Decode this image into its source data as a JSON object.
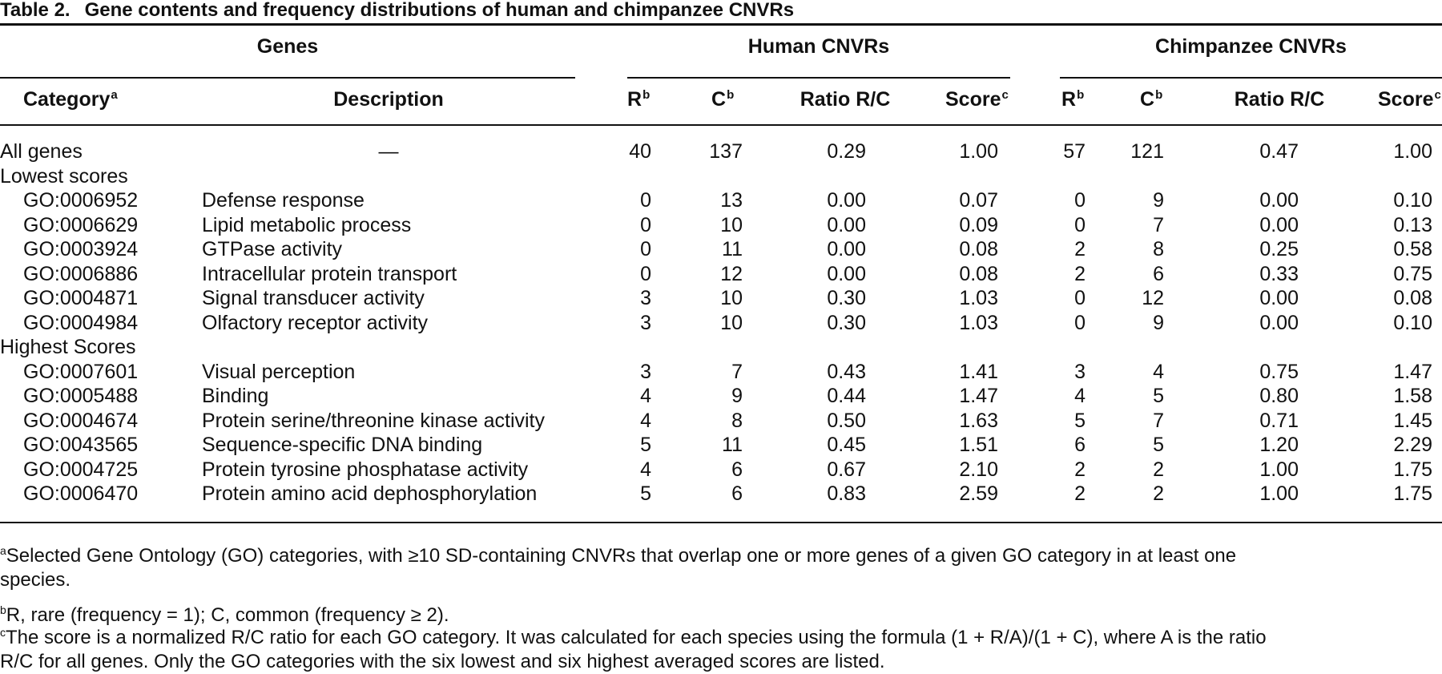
{
  "table": {
    "label": "Table 2.",
    "title": "Gene contents and frequency distributions of human and chimpanzee CNVRs",
    "group_headers": {
      "genes": "Genes",
      "human": "Human CNVRs",
      "chimp": "Chimpanzee CNVRs"
    },
    "column_headers": {
      "category": "Category",
      "category_sup": "a",
      "description": "Description",
      "r": "R",
      "r_sup": "b",
      "c": "C",
      "c_sup": "b",
      "ratio": "Ratio R/C",
      "score": "Score",
      "score_sup": "c"
    },
    "rows": [
      {
        "type": "data",
        "category": "All genes",
        "description": "—",
        "h_r": "40",
        "h_c": "137",
        "h_ratio": "0.29",
        "h_score": "1.00",
        "c_r": "57",
        "c_c": "121",
        "c_ratio": "0.47",
        "c_score": "1.00"
      },
      {
        "type": "section",
        "category": "Lowest scores"
      },
      {
        "type": "data",
        "category": "GO:0006952",
        "description": "Defense response",
        "h_r": "0",
        "h_c": "13",
        "h_ratio": "0.00",
        "h_score": "0.07",
        "c_r": "0",
        "c_c": "9",
        "c_ratio": "0.00",
        "c_score": "0.10"
      },
      {
        "type": "data",
        "category": "GO:0006629",
        "description": "Lipid metabolic process",
        "h_r": "0",
        "h_c": "10",
        "h_ratio": "0.00",
        "h_score": "0.09",
        "c_r": "0",
        "c_c": "7",
        "c_ratio": "0.00",
        "c_score": "0.13"
      },
      {
        "type": "data",
        "category": "GO:0003924",
        "description": "GTPase activity",
        "h_r": "0",
        "h_c": "11",
        "h_ratio": "0.00",
        "h_score": "0.08",
        "c_r": "2",
        "c_c": "8",
        "c_ratio": "0.25",
        "c_score": "0.58"
      },
      {
        "type": "data",
        "category": "GO:0006886",
        "description": "Intracellular protein transport",
        "h_r": "0",
        "h_c": "12",
        "h_ratio": "0.00",
        "h_score": "0.08",
        "c_r": "2",
        "c_c": "6",
        "c_ratio": "0.33",
        "c_score": "0.75"
      },
      {
        "type": "data",
        "category": "GO:0004871",
        "description": "Signal transducer activity",
        "h_r": "3",
        "h_c": "10",
        "h_ratio": "0.30",
        "h_score": "1.03",
        "c_r": "0",
        "c_c": "12",
        "c_ratio": "0.00",
        "c_score": "0.08"
      },
      {
        "type": "data",
        "category": "GO:0004984",
        "description": "Olfactory receptor activity",
        "h_r": "3",
        "h_c": "10",
        "h_ratio": "0.30",
        "h_score": "1.03",
        "c_r": "0",
        "c_c": "9",
        "c_ratio": "0.00",
        "c_score": "0.10"
      },
      {
        "type": "section",
        "category": "Highest Scores"
      },
      {
        "type": "data",
        "category": "GO:0007601",
        "description": "Visual perception",
        "h_r": "3",
        "h_c": "7",
        "h_ratio": "0.43",
        "h_score": "1.41",
        "c_r": "3",
        "c_c": "4",
        "c_ratio": "0.75",
        "c_score": "1.47"
      },
      {
        "type": "data",
        "category": "GO:0005488",
        "description": "Binding",
        "h_r": "4",
        "h_c": "9",
        "h_ratio": "0.44",
        "h_score": "1.47",
        "c_r": "4",
        "c_c": "5",
        "c_ratio": "0.80",
        "c_score": "1.58"
      },
      {
        "type": "data",
        "category": "GO:0004674",
        "description": "Protein serine/threonine kinase activity",
        "h_r": "4",
        "h_c": "8",
        "h_ratio": "0.50",
        "h_score": "1.63",
        "c_r": "5",
        "c_c": "7",
        "c_ratio": "0.71",
        "c_score": "1.45"
      },
      {
        "type": "data",
        "category": "GO:0043565",
        "description": "Sequence-specific DNA binding",
        "h_r": "5",
        "h_c": "11",
        "h_ratio": "0.45",
        "h_score": "1.51",
        "c_r": "6",
        "c_c": "5",
        "c_ratio": "1.20",
        "c_score": "2.29"
      },
      {
        "type": "data",
        "category": "GO:0004725",
        "description": "Protein tyrosine phosphatase activity",
        "h_r": "4",
        "h_c": "6",
        "h_ratio": "0.67",
        "h_score": "2.10",
        "c_r": "2",
        "c_c": "2",
        "c_ratio": "1.00",
        "c_score": "1.75"
      },
      {
        "type": "data",
        "category": "GO:0006470",
        "description": "Protein amino acid dephosphorylation",
        "h_r": "5",
        "h_c": "6",
        "h_ratio": "0.83",
        "h_score": "2.59",
        "c_r": "2",
        "c_c": "2",
        "c_ratio": "1.00",
        "c_score": "1.75"
      }
    ],
    "footnotes": [
      {
        "mark": "a",
        "lines": [
          "Selected Gene Ontology (GO) categories, with ≥10 SD-containing CNVRs that overlap one or more genes of a given GO category in at least one",
          "species."
        ]
      },
      {
        "mark": "b",
        "lines": [
          "R, rare (frequency = 1); C, common (frequency ≥ 2)."
        ]
      },
      {
        "mark": "c",
        "lines": [
          "The score is a normalized R/C ratio for each GO category. It was calculated for each species using the formula (1 + R/A)/(1 + C), where A is the ratio",
          "R/C for all genes. Only the GO categories with the six lowest and six highest averaged scores are listed."
        ]
      }
    ]
  }
}
